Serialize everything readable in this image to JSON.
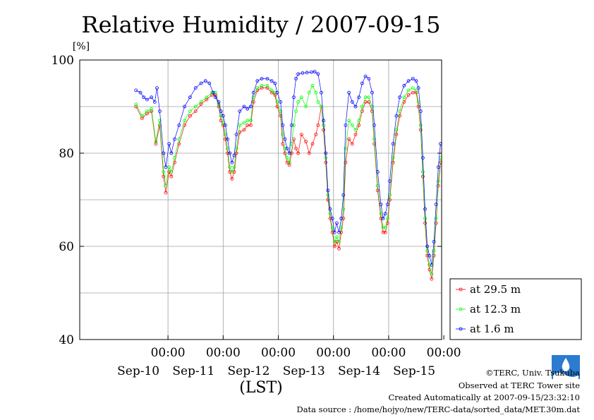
{
  "chart_data": {
    "type": "line",
    "title": "Relative Humidity / 2007-09-15",
    "ylabel": "[%]",
    "xlabel": "(LST)",
    "ylim": [
      40,
      100
    ],
    "y_ticks": [
      "100",
      "80",
      "60",
      "40"
    ],
    "y_grid": [
      50,
      60,
      70,
      80,
      90
    ],
    "xlim": [
      -1.6,
      4.96
    ],
    "x_ticks": [
      {
        "x": 0,
        "time": "00:00",
        "date": "Sep-10"
      },
      {
        "x": 1,
        "time": "00:00",
        "date": "Sep-11"
      },
      {
        "x": 2,
        "time": "00:00",
        "date": "Sep-12"
      },
      {
        "x": 3,
        "time": "00:00",
        "date": "Sep-13"
      },
      {
        "x": 4,
        "time": "00:00",
        "date": "Sep-14"
      },
      {
        "x": 5,
        "time": "00:00",
        "date": "Sep-15"
      }
    ],
    "grid": true,
    "legend_position": "bottom-right outside",
    "series": [
      {
        "name": "at 29.5 m",
        "color": "#ff0000",
        "points": [
          [
            -0.58,
            90
          ],
          [
            -0.47,
            87.5
          ],
          [
            -0.38,
            88.5
          ],
          [
            -0.3,
            89
          ],
          [
            -0.22,
            82
          ],
          [
            -0.15,
            86
          ],
          [
            -0.08,
            75
          ],
          [
            -0.04,
            71.5
          ],
          [
            0.02,
            76
          ],
          [
            0.06,
            75
          ],
          [
            0.12,
            78
          ],
          [
            0.2,
            82
          ],
          [
            0.3,
            86
          ],
          [
            0.4,
            88
          ],
          [
            0.5,
            89
          ],
          [
            0.6,
            90.5
          ],
          [
            0.7,
            91.5
          ],
          [
            0.8,
            92.5
          ],
          [
            0.86,
            92.5
          ],
          [
            0.92,
            90
          ],
          [
            0.96,
            87
          ],
          [
            1.0,
            86
          ],
          [
            1.04,
            83
          ],
          [
            1.08,
            80
          ],
          [
            1.12,
            76
          ],
          [
            1.16,
            74.5
          ],
          [
            1.2,
            76
          ],
          [
            1.24,
            80
          ],
          [
            1.3,
            84.5
          ],
          [
            1.38,
            85
          ],
          [
            1.44,
            86
          ],
          [
            1.5,
            86
          ],
          [
            1.55,
            91
          ],
          [
            1.62,
            93.5
          ],
          [
            1.7,
            94
          ],
          [
            1.8,
            94
          ],
          [
            1.88,
            93
          ],
          [
            1.94,
            92.5
          ],
          [
            1.98,
            90
          ],
          [
            2.04,
            88
          ],
          [
            2.08,
            82
          ],
          [
            2.12,
            80
          ],
          [
            2.16,
            78
          ],
          [
            2.2,
            77.5
          ],
          [
            2.24,
            80
          ],
          [
            2.28,
            83
          ],
          [
            2.32,
            81
          ],
          [
            2.36,
            80
          ],
          [
            2.42,
            84
          ],
          [
            2.5,
            82.5
          ],
          [
            2.56,
            80
          ],
          [
            2.62,
            82
          ],
          [
            2.68,
            84
          ],
          [
            2.72,
            86
          ],
          [
            2.78,
            90
          ],
          [
            2.82,
            85
          ],
          [
            2.86,
            78
          ],
          [
            2.9,
            70
          ],
          [
            2.94,
            66
          ],
          [
            2.98,
            63
          ],
          [
            3.02,
            60
          ],
          [
            3.06,
            61
          ],
          [
            3.1,
            59.5
          ],
          [
            3.14,
            63
          ],
          [
            3.18,
            66
          ],
          [
            3.22,
            78
          ],
          [
            3.28,
            83
          ],
          [
            3.34,
            82
          ],
          [
            3.4,
            84
          ],
          [
            3.46,
            86
          ],
          [
            3.52,
            89
          ],
          [
            3.58,
            91
          ],
          [
            3.64,
            91
          ],
          [
            3.7,
            89
          ],
          [
            3.74,
            82
          ],
          [
            3.8,
            72
          ],
          [
            3.86,
            66
          ],
          [
            3.9,
            63
          ],
          [
            3.94,
            63
          ],
          [
            3.98,
            65
          ],
          [
            4.02,
            70
          ],
          [
            4.08,
            78
          ],
          [
            4.14,
            84
          ],
          [
            4.2,
            88
          ],
          [
            4.28,
            91
          ],
          [
            4.36,
            92.5
          ],
          [
            4.44,
            93
          ],
          [
            4.5,
            93
          ],
          [
            4.54,
            90
          ],
          [
            4.58,
            85
          ],
          [
            4.62,
            75
          ],
          [
            4.66,
            65
          ],
          [
            4.7,
            58
          ],
          [
            4.74,
            55
          ],
          [
            4.78,
            53
          ],
          [
            4.82,
            58
          ],
          [
            4.86,
            65
          ],
          [
            4.9,
            73
          ],
          [
            4.94,
            78
          ],
          [
            4.98,
            82
          ],
          [
            5.02,
            84
          ],
          [
            5.06,
            85
          ]
        ]
      },
      {
        "name": "at 12.3 m",
        "color": "#00ff00",
        "points": [
          [
            -0.58,
            90.5
          ],
          [
            -0.47,
            88
          ],
          [
            -0.38,
            89
          ],
          [
            -0.3,
            89.5
          ],
          [
            -0.22,
            82.5
          ],
          [
            -0.15,
            87
          ],
          [
            -0.08,
            76
          ],
          [
            -0.04,
            73
          ],
          [
            0.02,
            77
          ],
          [
            0.06,
            76
          ],
          [
            0.12,
            79
          ],
          [
            0.2,
            83
          ],
          [
            0.3,
            87
          ],
          [
            0.4,
            89
          ],
          [
            0.5,
            90
          ],
          [
            0.6,
            91
          ],
          [
            0.7,
            92
          ],
          [
            0.8,
            93
          ],
          [
            0.86,
            93
          ],
          [
            0.92,
            90.5
          ],
          [
            0.96,
            88
          ],
          [
            1.0,
            86.5
          ],
          [
            1.04,
            84
          ],
          [
            1.08,
            81
          ],
          [
            1.12,
            77
          ],
          [
            1.16,
            76
          ],
          [
            1.2,
            77
          ],
          [
            1.24,
            81
          ],
          [
            1.3,
            86
          ],
          [
            1.38,
            86.5
          ],
          [
            1.44,
            87
          ],
          [
            1.5,
            87
          ],
          [
            1.55,
            92
          ],
          [
            1.62,
            94
          ],
          [
            1.7,
            94.5
          ],
          [
            1.8,
            94.5
          ],
          [
            1.88,
            93.5
          ],
          [
            1.94,
            93
          ],
          [
            1.98,
            91
          ],
          [
            2.04,
            89
          ],
          [
            2.08,
            84
          ],
          [
            2.12,
            81
          ],
          [
            2.16,
            79
          ],
          [
            2.2,
            78
          ],
          [
            2.24,
            82
          ],
          [
            2.28,
            86
          ],
          [
            2.32,
            89
          ],
          [
            2.36,
            91
          ],
          [
            2.42,
            92
          ],
          [
            2.5,
            90
          ],
          [
            2.56,
            93
          ],
          [
            2.62,
            94.5
          ],
          [
            2.68,
            93
          ],
          [
            2.72,
            91
          ],
          [
            2.78,
            90
          ],
          [
            2.82,
            86
          ],
          [
            2.86,
            79
          ],
          [
            2.9,
            71
          ],
          [
            2.94,
            67
          ],
          [
            2.98,
            64
          ],
          [
            3.02,
            61
          ],
          [
            3.06,
            62
          ],
          [
            3.1,
            61
          ],
          [
            3.14,
            64
          ],
          [
            3.18,
            68
          ],
          [
            3.22,
            81
          ],
          [
            3.28,
            87
          ],
          [
            3.34,
            86
          ],
          [
            3.4,
            85
          ],
          [
            3.46,
            87
          ],
          [
            3.52,
            90
          ],
          [
            3.58,
            92
          ],
          [
            3.64,
            92
          ],
          [
            3.7,
            90
          ],
          [
            3.74,
            83
          ],
          [
            3.8,
            73
          ],
          [
            3.86,
            67
          ],
          [
            3.9,
            64
          ],
          [
            3.94,
            64
          ],
          [
            3.98,
            66
          ],
          [
            4.02,
            71
          ],
          [
            4.08,
            79
          ],
          [
            4.14,
            85
          ],
          [
            4.2,
            89
          ],
          [
            4.28,
            92
          ],
          [
            4.36,
            93.5
          ],
          [
            4.44,
            94
          ],
          [
            4.5,
            93.5
          ],
          [
            4.54,
            91
          ],
          [
            4.58,
            86
          ],
          [
            4.62,
            76
          ],
          [
            4.66,
            66
          ],
          [
            4.7,
            59
          ],
          [
            4.74,
            56
          ],
          [
            4.78,
            54
          ],
          [
            4.82,
            59
          ],
          [
            4.86,
            66
          ],
          [
            4.9,
            74
          ],
          [
            4.94,
            79
          ],
          [
            4.98,
            83
          ],
          [
            5.02,
            85
          ],
          [
            5.06,
            86
          ]
        ]
      },
      {
        "name": "at 1.6 m",
        "color": "#0000ff",
        "points": [
          [
            -0.58,
            93.5
          ],
          [
            -0.5,
            93
          ],
          [
            -0.44,
            92
          ],
          [
            -0.38,
            91.5
          ],
          [
            -0.3,
            92
          ],
          [
            -0.24,
            91
          ],
          [
            -0.2,
            94
          ],
          [
            -0.15,
            89
          ],
          [
            -0.08,
            80
          ],
          [
            -0.04,
            77
          ],
          [
            0.02,
            82
          ],
          [
            0.06,
            80
          ],
          [
            0.12,
            83
          ],
          [
            0.2,
            86
          ],
          [
            0.3,
            90
          ],
          [
            0.4,
            92
          ],
          [
            0.5,
            94
          ],
          [
            0.6,
            95
          ],
          [
            0.68,
            95.5
          ],
          [
            0.75,
            95
          ],
          [
            0.82,
            93
          ],
          [
            0.86,
            92
          ],
          [
            0.92,
            91
          ],
          [
            0.96,
            89
          ],
          [
            1.0,
            88
          ],
          [
            1.04,
            86
          ],
          [
            1.08,
            83
          ],
          [
            1.12,
            80
          ],
          [
            1.16,
            78
          ],
          [
            1.2,
            79.5
          ],
          [
            1.24,
            84
          ],
          [
            1.3,
            89
          ],
          [
            1.38,
            90
          ],
          [
            1.44,
            89.5
          ],
          [
            1.5,
            90
          ],
          [
            1.55,
            93
          ],
          [
            1.62,
            95.5
          ],
          [
            1.7,
            96
          ],
          [
            1.8,
            96
          ],
          [
            1.88,
            95.5
          ],
          [
            1.94,
            95
          ],
          [
            1.98,
            93
          ],
          [
            2.04,
            91
          ],
          [
            2.08,
            86
          ],
          [
            2.12,
            83
          ],
          [
            2.16,
            81
          ],
          [
            2.2,
            80
          ],
          [
            2.24,
            86
          ],
          [
            2.28,
            92
          ],
          [
            2.32,
            96
          ],
          [
            2.36,
            97
          ],
          [
            2.44,
            97.2
          ],
          [
            2.52,
            97.3
          ],
          [
            2.6,
            97.4
          ],
          [
            2.66,
            97.5
          ],
          [
            2.72,
            97
          ],
          [
            2.78,
            93
          ],
          [
            2.82,
            87
          ],
          [
            2.86,
            80
          ],
          [
            2.9,
            72
          ],
          [
            2.94,
            68
          ],
          [
            2.98,
            66
          ],
          [
            3.02,
            63
          ],
          [
            3.06,
            65
          ],
          [
            3.1,
            63
          ],
          [
            3.14,
            66
          ],
          [
            3.18,
            71
          ],
          [
            3.22,
            86
          ],
          [
            3.28,
            93
          ],
          [
            3.34,
            91
          ],
          [
            3.4,
            90
          ],
          [
            3.46,
            92
          ],
          [
            3.52,
            95
          ],
          [
            3.58,
            96.5
          ],
          [
            3.64,
            96
          ],
          [
            3.7,
            93
          ],
          [
            3.74,
            86
          ],
          [
            3.8,
            76
          ],
          [
            3.86,
            69
          ],
          [
            3.9,
            66
          ],
          [
            3.94,
            67
          ],
          [
            3.98,
            69
          ],
          [
            4.02,
            74
          ],
          [
            4.08,
            82
          ],
          [
            4.14,
            88
          ],
          [
            4.2,
            92
          ],
          [
            4.28,
            94.5
          ],
          [
            4.36,
            95.5
          ],
          [
            4.44,
            96
          ],
          [
            4.5,
            95.5
          ],
          [
            4.54,
            94
          ],
          [
            4.58,
            89
          ],
          [
            4.62,
            79
          ],
          [
            4.66,
            68
          ],
          [
            4.7,
            60
          ],
          [
            4.74,
            58
          ],
          [
            4.78,
            56
          ],
          [
            4.82,
            61
          ],
          [
            4.86,
            69
          ],
          [
            4.9,
            77
          ],
          [
            4.94,
            82
          ],
          [
            4.98,
            86
          ],
          [
            5.02,
            88
          ],
          [
            5.06,
            89
          ]
        ]
      }
    ]
  },
  "credits": {
    "copyright": "©TERC, Univ. Tsukuba",
    "site": "Observed at TERC Tower site",
    "created": "Created Automatically at 2007-09-15/23:32:10",
    "source": "Data source : /home/hojyo/new/TERC-data/sorted_data/MET.30m.dat"
  }
}
